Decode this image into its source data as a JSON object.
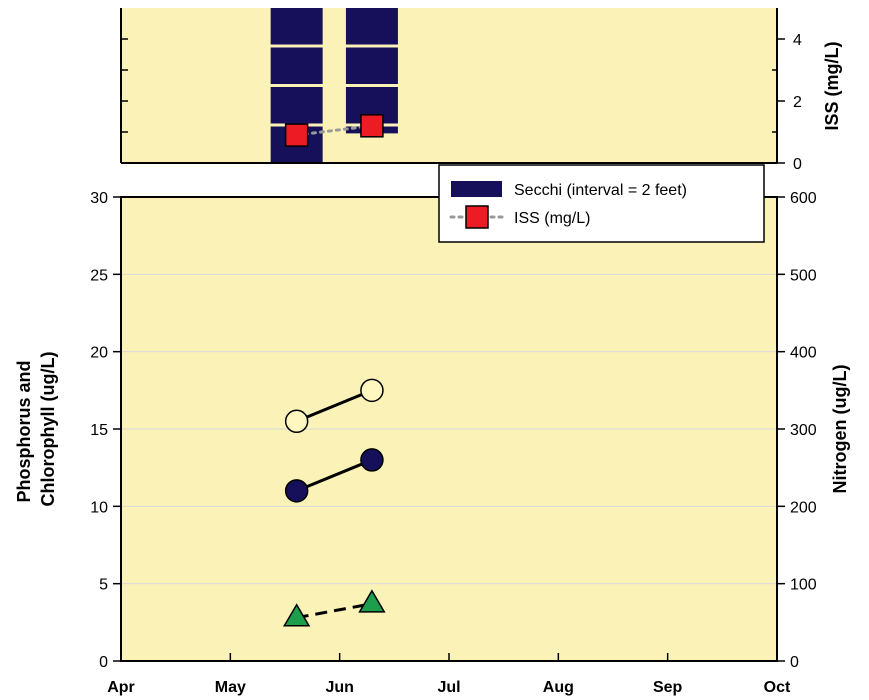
{
  "chart_data": [
    {
      "type": "bar",
      "panel": "top",
      "ylabel": "ISS (mg/L)",
      "ylim": [
        0,
        5
      ],
      "yticks": [
        "0",
        "2",
        "4"
      ],
      "grid": false,
      "legend_position": "bottom-right",
      "colors": {
        "background": "#fbf2b8",
        "secchi": "#16105a",
        "iss": "#ed1c24"
      },
      "secchi_interval_ft": 2,
      "series": [
        {
          "name": "Secchi (interval = 2 feet)",
          "type": "bar",
          "x": [
            "2017-05-20",
            "2017-06-10"
          ],
          "depth_ft": [
            8,
            6.5
          ]
        },
        {
          "name": "ISS (mg/L)",
          "type": "scatter",
          "marker": "square",
          "line": "dotted",
          "x": [
            "2017-05-20",
            "2017-06-10"
          ],
          "values": [
            0.9,
            1.2
          ]
        }
      ]
    },
    {
      "type": "line",
      "panel": "bottom",
      "xticks": [
        "Apr",
        "May",
        "Jun",
        "Jul",
        "Aug",
        "Sep",
        "Oct"
      ],
      "ylabel_left": [
        "Phosphorus and",
        "Chlorophyll (ug/L)"
      ],
      "ylabel_right": "Nitrogen (ug/L)",
      "ylim_left": [
        0,
        30
      ],
      "yticks_left": [
        "0",
        "5",
        "10",
        "15",
        "20",
        "25",
        "30"
      ],
      "ylim_right": [
        0,
        600
      ],
      "yticks_right": [
        "0",
        "100",
        "200",
        "300",
        "400",
        "500",
        "600"
      ],
      "grid": true,
      "colors": {
        "background": "#fbf2b8",
        "gridline": "#d8d8d8",
        "open_circle": "#fef8c0",
        "filled_circle": "#16105a",
        "triangle": "#1c9e4d"
      },
      "series": [
        {
          "marker": "open-circle",
          "line": "solid",
          "axis": "left",
          "x": [
            "2017-05-20",
            "2017-06-10"
          ],
          "values": [
            15.5,
            17.5
          ]
        },
        {
          "marker": "filled-circle",
          "line": "solid",
          "axis": "left",
          "x": [
            "2017-05-20",
            "2017-06-10"
          ],
          "values": [
            11,
            13
          ]
        },
        {
          "marker": "triangle",
          "line": "dashed",
          "axis": "left",
          "x": [
            "2017-05-20",
            "2017-06-10"
          ],
          "values": [
            2.8,
            3.7
          ]
        }
      ]
    }
  ]
}
